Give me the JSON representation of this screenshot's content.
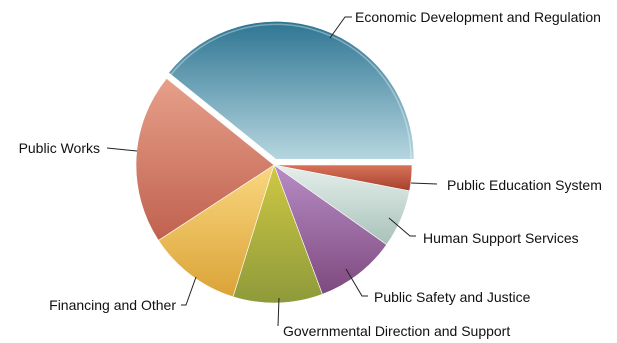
{
  "chart_data": {
    "type": "pie",
    "title": "",
    "slices": [
      {
        "label": "Economic Development and Regulation",
        "value": 39.2,
        "color_top": "#2e7592",
        "color_bottom": "#b6d6e0"
      },
      {
        "label": "Public Education System",
        "value": 3.0,
        "color_top": "#d8735a",
        "color_bottom": "#a53f2c"
      },
      {
        "label": "Human Support Services",
        "value": 6.8,
        "color_top": "#e6efeb",
        "color_bottom": "#a8c2b9"
      },
      {
        "label": "Public Safety and Justice",
        "value": 9.5,
        "color_top": "#b88cc6",
        "color_bottom": "#7e4a7e"
      },
      {
        "label": "Governmental Direction and Support",
        "value": 10.5,
        "color_top": "#cfc843",
        "color_bottom": "#8e9a3a"
      },
      {
        "label": "Financing and Other",
        "value": 11.0,
        "color_top": "#f9d77f",
        "color_bottom": "#dba338"
      },
      {
        "label": "Public Works",
        "value": 20.0,
        "color_top": "#e6a08a",
        "color_bottom": "#c0614f"
      }
    ]
  }
}
